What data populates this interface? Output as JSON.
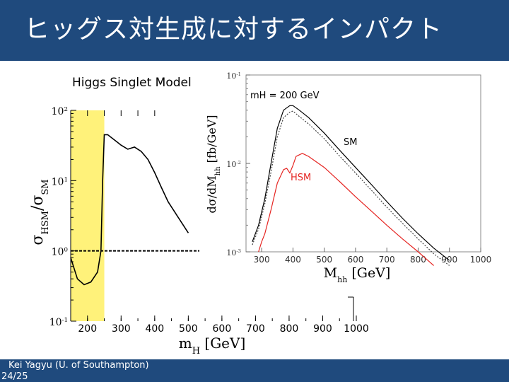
{
  "slide": {
    "title": "ヒッグス対生成に対するインパクト",
    "footer_author": "Kei Yagyu (U. of Southampton)",
    "footer_page": "24/25"
  },
  "colors": {
    "header": "#1f4a7d",
    "highlight": "#fff27a",
    "hsm_curve": "#e52421",
    "sm_curve": "#000000"
  },
  "chart_data": [
    {
      "type": "line",
      "title": "Higgs Singlet Model",
      "xlabel": "m_H [GeV]",
      "ylabel": "σ_HSM / σ_SM",
      "x_ticks": [
        "200",
        "300",
        "400",
        "500",
        "600",
        "700",
        "800",
        "900",
        "1000"
      ],
      "y_ticks": [
        "10^-1",
        "10^0",
        "10^1",
        "10^2"
      ],
      "y_scale": "log",
      "ylim": [
        0.1,
        100
      ],
      "xlim": [
        150,
        1000
      ],
      "highlight_range": [
        150,
        250
      ],
      "reference_line": 1,
      "series": [
        {
          "x": [
            150,
            170,
            190,
            210,
            230,
            240,
            245,
            250,
            260,
            280,
            300,
            320,
            340,
            360,
            380,
            400,
            420,
            440,
            470,
            500
          ],
          "y": [
            0.8,
            0.4,
            0.33,
            0.36,
            0.5,
            1.0,
            10,
            45,
            45,
            38,
            32,
            28,
            30,
            26,
            20,
            13,
            8,
            5,
            3,
            1.8
          ]
        }
      ]
    },
    {
      "type": "line",
      "annotation": "mH = 200 GeV",
      "xlabel": "M_hh [GeV]",
      "ylabel": "dσ/dM_hh [fb/GeV]",
      "x_ticks": [
        "300",
        "400",
        "500",
        "600",
        "700",
        "800",
        "900",
        "1000"
      ],
      "y_ticks": [
        "10^-3",
        "10^-2",
        "10^-1"
      ],
      "y_scale": "log",
      "ylim": [
        0.001,
        0.1
      ],
      "xlim": [
        250,
        1000
      ],
      "series": [
        {
          "name": "SM",
          "style": "solid",
          "x": [
            270,
            290,
            310,
            330,
            350,
            370,
            390,
            400,
            420,
            450,
            500,
            550,
            600,
            650,
            700,
            750,
            800,
            850,
            900
          ],
          "y": [
            0.0013,
            0.002,
            0.004,
            0.01,
            0.025,
            0.04,
            0.045,
            0.045,
            0.04,
            0.033,
            0.022,
            0.014,
            0.009,
            0.0058,
            0.0037,
            0.0024,
            0.0016,
            0.0011,
            0.0008
          ]
        },
        {
          "style": "dotted",
          "x": [
            270,
            290,
            310,
            330,
            350,
            370,
            390,
            400,
            420,
            450,
            500,
            550,
            600,
            650,
            700,
            750,
            800,
            850,
            900
          ],
          "y": [
            0.0012,
            0.0018,
            0.0035,
            0.008,
            0.02,
            0.033,
            0.038,
            0.039,
            0.034,
            0.028,
            0.019,
            0.012,
            0.0078,
            0.005,
            0.0032,
            0.0021,
            0.0014,
            0.00095,
            0.0007
          ]
        },
        {
          "name": "HSM",
          "style": "solid",
          "x": [
            290,
            300,
            310,
            330,
            350,
            370,
            380,
            390,
            400,
            410,
            430,
            450,
            500,
            550,
            600,
            650,
            700,
            750,
            800,
            850
          ],
          "y": [
            0.001,
            0.0013,
            0.0016,
            0.003,
            0.006,
            0.0085,
            0.0088,
            0.0078,
            0.0095,
            0.012,
            0.013,
            0.012,
            0.009,
            0.0062,
            0.0042,
            0.0029,
            0.002,
            0.0014,
            0.001,
            0.0007
          ]
        }
      ]
    }
  ]
}
